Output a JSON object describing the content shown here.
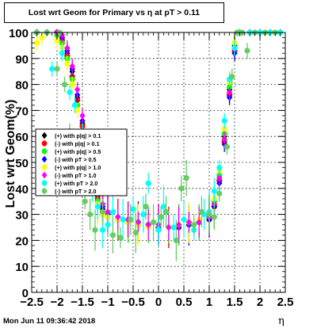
{
  "title": "Lost wrt Geom for Primary vs    η at pT > 0.11",
  "timestamp": "Mon Jun 11 09:36:42 2018",
  "chart_data": {
    "type": "scatter",
    "title": "Lost wrt Geom for Primary vs    η at pT > 0.11",
    "xlabel": "η",
    "ylabel": "Lost wrt Geom(%)",
    "xlim": [
      -2.5,
      2.5
    ],
    "ylim": [
      0,
      100
    ],
    "x_ticks": [
      "−2.5",
      "−2",
      "−1.5",
      "−1",
      "−0.5",
      "0",
      "0.5",
      "1",
      "1.5",
      "2",
      "2.5"
    ],
    "y_ticks": [
      "0",
      "10",
      "20",
      "30",
      "40",
      "50",
      "60",
      "70",
      "80",
      "90",
      "100"
    ],
    "grid": true,
    "legend_position": "left-middle",
    "series": [
      {
        "name": "(+) with p",
        "legend_label": "(+) with p|q| > 0.1",
        "color": "#000000",
        "marker": "diamond",
        "x": [
          -2.4,
          -2.2,
          -2.0,
          -1.9,
          -1.8,
          -1.7,
          -1.6,
          -1.5,
          -1.4,
          -1.3,
          -1.2,
          -1.1,
          -1.0,
          -0.8,
          -0.6,
          -0.4,
          -0.2,
          0.0,
          0.2,
          0.4,
          0.6,
          0.8,
          1.0,
          1.1,
          1.2,
          1.3,
          1.4,
          1.5,
          1.6,
          1.8,
          2.0,
          2.2,
          2.4
        ],
        "y": [
          100,
          100,
          100,
          98,
          92,
          85,
          75,
          65,
          55,
          45,
          37,
          32,
          30,
          29,
          28,
          27,
          26,
          26,
          25,
          26,
          26,
          27,
          29,
          34,
          44,
          60,
          78,
          95,
          100,
          100,
          100,
          100,
          100
        ]
      },
      {
        "name": "(-) with p",
        "legend_label": "(-) with p|q| > 0.1",
        "color": "#ff0000",
        "marker": "circle",
        "x": [
          -2.4,
          -2.2,
          -2.0,
          -1.9,
          -1.8,
          -1.7,
          -1.6,
          -1.5,
          -1.4,
          -1.3,
          -1.2,
          -1.1,
          -1.0,
          -0.8,
          -0.6,
          -0.4,
          -0.2,
          0.0,
          0.2,
          0.4,
          0.6,
          0.8,
          1.0,
          1.1,
          1.2,
          1.3,
          1.4,
          1.5,
          1.6,
          1.8,
          2.0,
          2.2,
          2.4
        ],
        "y": [
          100,
          100,
          100,
          97,
          91,
          83,
          74,
          64,
          54,
          44,
          36,
          31,
          29,
          28,
          27,
          26,
          26,
          25,
          25,
          25,
          26,
          27,
          28,
          33,
          43,
          58,
          76,
          93,
          100,
          100,
          100,
          100,
          100
        ]
      },
      {
        "name": "(+) with p",
        "legend_label": "(+) with p|q| > 0.5",
        "color": "#00ff00",
        "marker": "circle",
        "x": [
          -2.4,
          -2.2,
          -2.0,
          -1.9,
          -1.8,
          -1.7,
          -1.6,
          -1.5,
          -1.4,
          -1.3,
          -1.2,
          -1.1,
          -1.0,
          -0.8,
          -0.6,
          -0.4,
          -0.2,
          0.0,
          0.2,
          0.4,
          0.6,
          0.8,
          1.0,
          1.1,
          1.2,
          1.3,
          1.4,
          1.5,
          1.6,
          1.8,
          2.0,
          2.2,
          2.4
        ],
        "y": [
          100,
          100,
          99,
          96,
          90,
          82,
          72,
          62,
          52,
          43,
          35,
          30,
          29,
          28,
          27,
          27,
          26,
          26,
          25,
          26,
          26,
          27,
          29,
          35,
          45,
          61,
          79,
          96,
          100,
          100,
          100,
          100,
          100
        ]
      },
      {
        "name": "(-) with pT",
        "legend_label": "(-) with pT > 0.5",
        "color": "#0000ff",
        "marker": "diamond",
        "x": [
          -2.4,
          -2.2,
          -2.0,
          -1.9,
          -1.8,
          -1.7,
          -1.6,
          -1.5,
          -1.4,
          -1.3,
          -1.2,
          -1.1,
          -1.0,
          -0.8,
          -0.6,
          -0.4,
          -0.2,
          0.0,
          0.2,
          0.4,
          0.6,
          0.8,
          1.0,
          1.1,
          1.2,
          1.3,
          1.4,
          1.5,
          1.6,
          1.8,
          2.0,
          2.2,
          2.4
        ],
        "y": [
          100,
          100,
          100,
          98,
          93,
          86,
          76,
          66,
          56,
          46,
          38,
          33,
          30,
          29,
          28,
          27,
          26,
          25,
          25,
          25,
          26,
          27,
          28,
          33,
          42,
          57,
          75,
          92,
          100,
          100,
          100,
          100,
          100
        ]
      },
      {
        "name": "(+) with p",
        "legend_label": "(+) with p|q| > 1.0",
        "color": "#ffff00",
        "marker": "circle",
        "x": [
          -2.4,
          -2.3,
          -2.2,
          -2.0,
          -1.9,
          -1.8,
          -1.7,
          -1.6,
          -1.5,
          -1.4,
          -1.3,
          -1.2,
          -1.1,
          -1.0,
          -0.8,
          -0.6,
          -0.4,
          -0.2,
          0.0,
          0.2,
          0.4,
          0.6,
          0.8,
          1.0,
          1.1,
          1.2,
          1.3,
          1.4,
          1.5,
          1.6,
          1.8,
          2.0,
          2.2,
          2.4
        ],
        "y": [
          96,
          98,
          100,
          97,
          94,
          88,
          80,
          70,
          60,
          50,
          41,
          34,
          30,
          29,
          28,
          27,
          26,
          25,
          26,
          25,
          26,
          27,
          28,
          30,
          36,
          47,
          63,
          81,
          96,
          100,
          100,
          100,
          100,
          100
        ]
      },
      {
        "name": "(-) with pT",
        "legend_label": "(-) with pT > 1.0",
        "color": "#ff00ff",
        "marker": "diamond",
        "x": [
          -2.4,
          -2.2,
          -2.0,
          -1.9,
          -1.8,
          -1.7,
          -1.6,
          -1.5,
          -1.4,
          -1.3,
          -1.2,
          -1.1,
          -1.0,
          -0.8,
          -0.6,
          -0.4,
          -0.2,
          0.0,
          0.2,
          0.4,
          0.6,
          0.8,
          1.0,
          1.1,
          1.2,
          1.3,
          1.4,
          1.5,
          1.6,
          1.8,
          2.0,
          2.2,
          2.4
        ],
        "y": [
          100,
          100,
          100,
          99,
          94,
          87,
          78,
          68,
          58,
          48,
          40,
          34,
          31,
          29,
          28,
          27,
          26,
          26,
          25,
          26,
          27,
          27,
          29,
          34,
          44,
          59,
          77,
          94,
          100,
          100,
          100,
          100,
          100
        ]
      },
      {
        "name": "(+) with pT",
        "legend_label": "(+) with pT > 2.0",
        "color": "#00ffff",
        "marker": "circle",
        "x": [
          -2.4,
          -2.2,
          -2.1,
          -1.9,
          -1.75,
          -1.65,
          -1.5,
          -1.4,
          -1.3,
          -1.2,
          -1.1,
          -1.0,
          -0.9,
          -0.7,
          -0.5,
          -0.3,
          -0.2,
          0.0,
          0.1,
          0.3,
          0.5,
          0.7,
          0.9,
          1.0,
          1.1,
          1.2,
          1.3,
          1.4,
          1.5,
          1.6,
          1.8,
          2.0,
          2.2,
          2.4
        ],
        "y": [
          100,
          100,
          86,
          92,
          77,
          72,
          62,
          50,
          43,
          33,
          24,
          26,
          31,
          28,
          32,
          30,
          42,
          24,
          33,
          25,
          28,
          24,
          30,
          31,
          39,
          48,
          66,
          82,
          94,
          100,
          100,
          100,
          100,
          100
        ]
      },
      {
        "name": "(-) with pT",
        "legend_label": "(-) with pT > 2.0",
        "color": "#66cc66",
        "marker": "circle",
        "x": [
          -2.4,
          -2.2,
          -2.0,
          -1.95,
          -1.85,
          -1.75,
          -1.6,
          -1.45,
          -1.35,
          -1.25,
          -1.1,
          -0.9,
          -0.75,
          -0.55,
          -0.45,
          -0.25,
          -0.1,
          0.05,
          0.15,
          0.35,
          0.45,
          0.55,
          0.7,
          0.85,
          1.0,
          1.1,
          1.2,
          1.35,
          1.45,
          1.55,
          1.65,
          1.75,
          1.9,
          2.1,
          2.3
        ],
        "y": [
          100,
          100,
          86,
          100,
          80,
          62,
          48,
          35,
          30,
          24,
          31,
          22,
          21,
          28,
          23,
          33,
          27,
          29,
          31,
          20,
          40,
          44,
          26,
          31,
          30,
          29,
          38,
          56,
          83,
          100,
          100,
          93,
          100,
          100,
          100
        ]
      }
    ]
  }
}
